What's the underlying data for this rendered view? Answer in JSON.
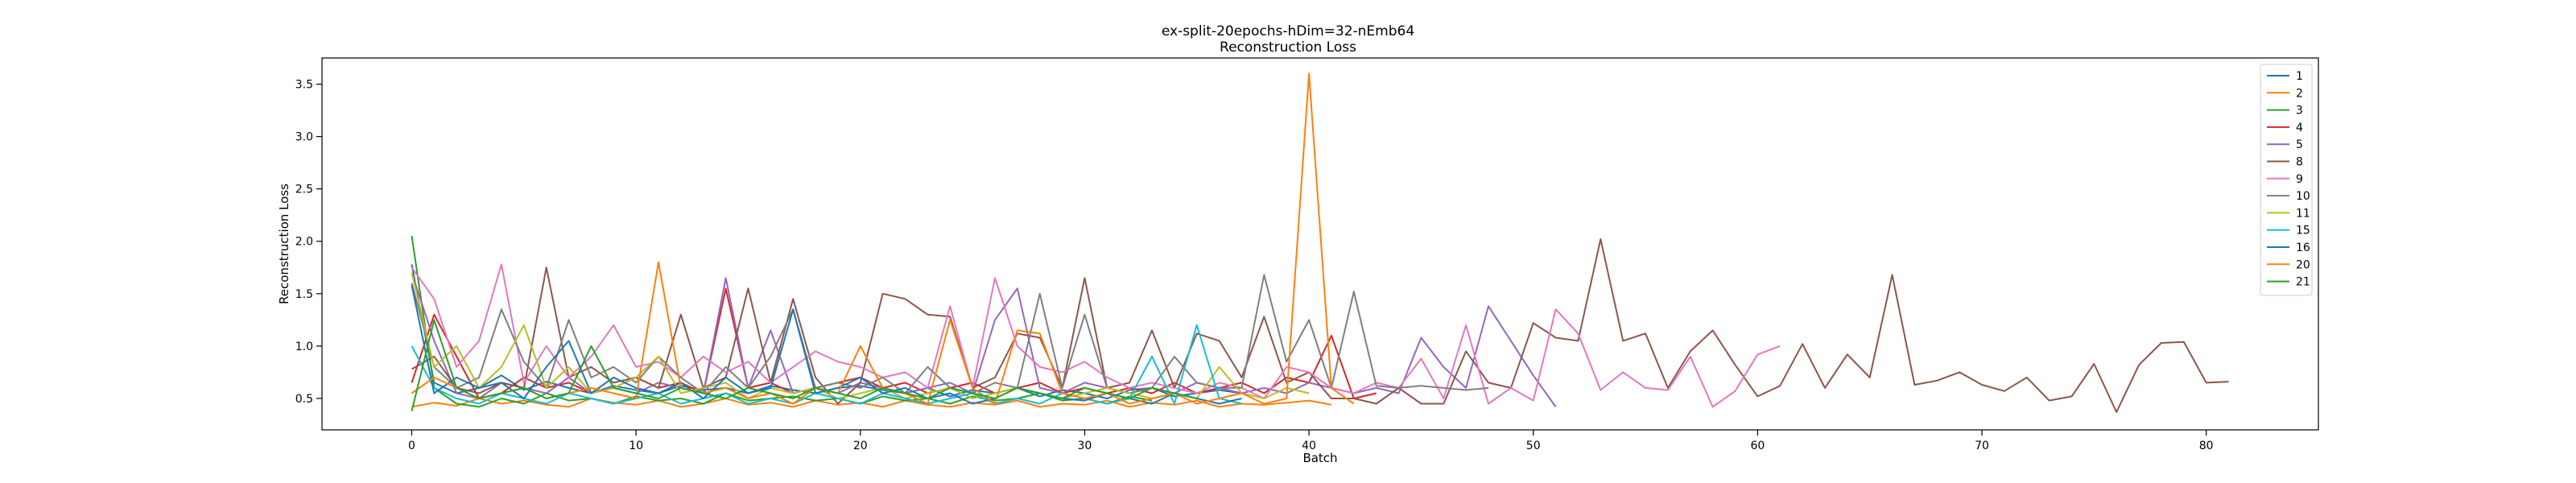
{
  "chart_data": {
    "type": "line",
    "title": "ex-split-20epochs-hDim=32-nEmb64",
    "subtitle": "Reconstruction Loss",
    "xlabel": "Batch",
    "ylabel": "Reconstruction Loss",
    "xlim": [
      -4,
      85
    ],
    "ylim": [
      0.2,
      3.75
    ],
    "xticks": [
      0,
      10,
      20,
      30,
      40,
      50,
      60,
      70,
      80
    ],
    "yticks": [
      0.5,
      1.0,
      1.5,
      2.0,
      2.5,
      3.0,
      3.5
    ],
    "grid": false,
    "legend_position": "top-right",
    "series": [
      {
        "name": "1",
        "color": "#1f77b4",
        "values": [
          1.78,
          0.65,
          0.55,
          0.6,
          0.72,
          0.58,
          0.66,
          0.6,
          0.55,
          0.62,
          0.58,
          0.55,
          0.62,
          0.58,
          0.6,
          0.55,
          0.62,
          0.58,
          0.55,
          0.6,
          0.62,
          0.58,
          0.55,
          0.6,
          0.52,
          0.58,
          0.55,
          0.6,
          0.52,
          0.58,
          0.55,
          0.5,
          0.58,
          0.6,
          0.52,
          0.55,
          0.58,
          0.55
        ]
      },
      {
        "name": "2",
        "color": "#ff7f0e",
        "values": [
          0.42,
          0.46,
          0.43,
          0.5,
          0.45,
          0.48,
          0.44,
          0.42,
          0.5,
          0.46,
          0.44,
          0.48,
          0.42,
          0.45,
          0.5,
          0.44,
          0.46,
          0.42,
          0.48,
          0.44,
          0.46,
          0.42,
          0.48,
          0.44,
          0.42,
          0.46,
          0.44,
          0.48,
          0.42,
          0.45,
          0.44,
          0.48,
          0.42,
          0.46,
          0.44,
          0.48,
          0.42,
          0.45,
          0.44,
          0.46,
          0.48,
          0.44
        ]
      },
      {
        "name": "3",
        "color": "#2ca02c",
        "values": [
          2.05,
          0.6,
          0.45,
          0.42,
          0.5,
          0.45,
          0.55,
          0.48,
          0.5,
          0.45,
          0.52,
          0.48,
          0.5,
          0.45,
          0.55,
          0.48,
          0.5,
          0.52,
          0.48,
          0.5,
          0.45,
          0.52,
          0.48,
          0.5,
          0.45,
          0.52,
          0.48,
          0.5,
          0.55,
          0.48,
          0.5,
          0.45,
          0.52,
          0.48
        ]
      },
      {
        "name": "4",
        "color": "#d62728",
        "values": [
          0.65,
          1.3,
          0.9,
          0.5,
          0.55,
          0.7,
          0.6,
          0.65,
          0.55,
          0.6,
          0.7,
          0.6,
          0.65,
          0.55,
          1.55,
          0.6,
          0.65,
          0.55,
          0.6,
          0.65,
          0.7,
          0.6,
          0.65,
          0.55,
          0.6,
          0.65,
          0.55,
          0.6,
          0.65,
          0.55,
          0.6,
          0.55,
          0.6,
          0.55,
          0.65,
          0.55,
          0.6,
          0.65,
          0.55,
          0.7,
          0.65,
          1.1,
          0.5,
          0.55
        ]
      },
      {
        "name": "5",
        "color": "#9467bd",
        "values": [
          1.7,
          1.05,
          0.55,
          0.5,
          0.65,
          0.6,
          0.55,
          0.7,
          0.55,
          0.6,
          0.55,
          0.65,
          0.6,
          0.55,
          1.65,
          0.6,
          1.15,
          0.55,
          0.6,
          0.55,
          0.65,
          0.6,
          0.55,
          0.6,
          0.65,
          0.55,
          1.25,
          1.55,
          0.6,
          0.55,
          0.65,
          0.6,
          0.55,
          0.6,
          0.55,
          0.65,
          0.6,
          0.55,
          0.6,
          0.55,
          0.65,
          0.6,
          0.55,
          0.6,
          0.55,
          1.08,
          0.8,
          0.6,
          1.38,
          1.05,
          0.72,
          0.42
        ]
      },
      {
        "name": "8",
        "color": "#8c564b",
        "values": [
          0.78,
          0.9,
          0.6,
          0.55,
          0.65,
          0.6,
          1.75,
          0.7,
          0.8,
          0.65,
          0.7,
          0.6,
          1.3,
          0.6,
          0.7,
          1.55,
          0.65,
          1.45,
          0.7,
          0.45,
          0.65,
          1.5,
          1.45,
          1.3,
          1.28,
          0.6,
          0.7,
          1.12,
          1.08,
          0.6,
          1.65,
          0.6,
          0.65,
          1.15,
          0.6,
          1.12,
          1.05,
          0.7,
          1.28,
          0.65,
          0.75,
          0.5,
          0.5,
          0.45,
          0.6,
          0.45,
          0.45,
          0.95,
          0.65,
          0.6,
          1.22,
          1.08,
          1.05,
          2.02,
          1.05,
          1.12,
          0.6,
          0.95,
          1.15,
          0.82,
          0.52,
          0.62,
          1.02,
          0.6,
          0.92,
          0.7,
          1.68,
          0.63,
          0.67,
          0.75,
          0.63,
          0.57,
          0.7,
          0.48,
          0.52,
          0.83,
          0.37,
          0.82,
          1.03,
          1.04,
          0.65,
          0.66
        ]
      },
      {
        "name": "9",
        "color": "#e377c2",
        "values": [
          1.75,
          1.45,
          0.8,
          1.05,
          1.78,
          0.65,
          1.0,
          0.7,
          0.9,
          1.2,
          0.8,
          0.85,
          0.7,
          0.9,
          0.75,
          0.85,
          0.65,
          0.8,
          0.95,
          0.85,
          0.8,
          0.7,
          0.75,
          0.6,
          1.38,
          0.6,
          1.65,
          1.0,
          0.8,
          0.75,
          0.85,
          0.7,
          0.6,
          0.65,
          0.6,
          0.55,
          0.65,
          0.6,
          0.5,
          0.8,
          0.75,
          0.6,
          0.55,
          0.65,
          0.6,
          0.88,
          0.5,
          1.2,
          0.45,
          0.6,
          0.48,
          1.35,
          1.12,
          0.58,
          0.75,
          0.6,
          0.58,
          0.9,
          0.42,
          0.57,
          0.92,
          1.0
        ]
      },
      {
        "name": "10",
        "color": "#7f7f7f",
        "values": [
          1.6,
          0.8,
          0.6,
          0.7,
          1.35,
          0.85,
          0.6,
          1.25,
          0.7,
          0.8,
          0.65,
          0.9,
          0.7,
          0.55,
          0.8,
          0.6,
          0.9,
          1.35,
          0.6,
          0.65,
          0.6,
          0.7,
          0.55,
          0.8,
          0.6,
          0.55,
          0.65,
          0.6,
          1.5,
          0.6,
          1.3,
          0.6,
          0.55,
          0.6,
          0.9,
          0.65,
          0.6,
          0.6,
          1.68,
          0.85,
          1.25,
          0.6,
          1.52,
          0.62,
          0.6,
          0.62,
          0.6,
          0.58,
          0.6
        ]
      },
      {
        "name": "11",
        "color": "#bcbd22",
        "values": [
          1.7,
          0.8,
          1.0,
          0.6,
          0.8,
          1.2,
          0.6,
          0.8,
          0.55,
          0.6,
          0.7,
          0.9,
          0.55,
          0.6,
          0.65,
          0.5,
          0.6,
          0.55,
          0.6,
          0.5,
          0.55,
          0.6,
          0.5,
          0.55,
          0.6,
          0.5,
          0.55,
          0.6,
          0.55,
          0.5,
          0.55,
          0.6,
          0.55,
          0.5,
          0.55,
          0.5,
          0.8,
          0.55,
          0.5,
          0.6,
          0.55
        ]
      },
      {
        "name": "15",
        "color": "#17becf",
        "values": [
          1.0,
          0.6,
          0.5,
          0.45,
          0.55,
          0.5,
          0.45,
          0.55,
          0.5,
          0.45,
          0.5,
          0.55,
          0.45,
          0.5,
          0.55,
          0.45,
          0.5,
          0.45,
          0.55,
          0.5,
          0.45,
          0.55,
          0.5,
          0.45,
          0.5,
          0.55,
          0.45,
          0.5,
          0.45,
          0.55,
          0.5,
          0.45,
          0.5,
          0.9,
          0.45,
          1.2,
          0.5,
          0.45
        ]
      },
      {
        "name": "16",
        "color": "#1f77b4",
        "values": [
          1.58,
          0.55,
          0.7,
          0.6,
          0.65,
          0.5,
          0.8,
          1.05,
          0.55,
          0.7,
          0.6,
          0.55,
          0.65,
          0.5,
          0.7,
          0.55,
          0.6,
          1.35,
          0.55,
          0.6,
          0.7,
          0.55,
          0.6,
          0.5,
          0.55,
          0.45,
          0.5,
          0.6,
          0.55,
          0.5,
          0.48,
          0.55,
          0.5,
          0.45,
          0.55,
          0.5,
          0.45,
          0.5
        ]
      },
      {
        "name": "20",
        "color": "#ff7f0e",
        "values": [
          0.55,
          0.7,
          0.6,
          0.5,
          0.55,
          0.6,
          0.5,
          0.55,
          0.6,
          0.55,
          0.5,
          1.8,
          0.6,
          0.55,
          0.6,
          0.5,
          0.55,
          0.45,
          0.6,
          0.55,
          1.0,
          0.6,
          0.55,
          0.45,
          1.25,
          0.6,
          0.45,
          1.15,
          1.12,
          0.55,
          0.5,
          0.55,
          0.45,
          0.5,
          0.55,
          0.45,
          0.5,
          0.55,
          0.45,
          0.5,
          3.6,
          0.6,
          0.45
        ]
      },
      {
        "name": "21",
        "color": "#2ca02c",
        "values": [
          0.38,
          1.25,
          0.6,
          0.5,
          0.55,
          0.6,
          0.5,
          0.55,
          1.0,
          0.6,
          0.55,
          0.5,
          0.6,
          0.55,
          0.5,
          0.6,
          0.55,
          0.5,
          0.6,
          0.55,
          0.5,
          0.6,
          0.55,
          0.5,
          0.6,
          0.55,
          0.5,
          0.6,
          0.55,
          0.5,
          0.6,
          0.55,
          0.5,
          0.6,
          0.55,
          0.5
        ]
      }
    ]
  }
}
